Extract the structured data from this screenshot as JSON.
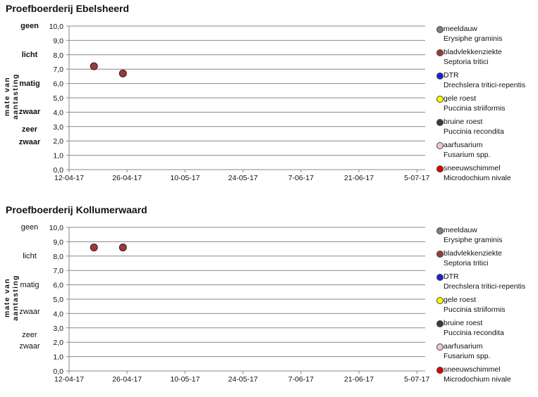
{
  "chart_data": [
    {
      "type": "scatter",
      "title": "Proefboerderij Ebelsheerd",
      "ylabel": "mate van aantasting",
      "ylim": [
        0,
        10
      ],
      "yticks": [
        "0,0",
        "1,0",
        "2,0",
        "3,0",
        "4,0",
        "5,0",
        "6,0",
        "7,0",
        "8,0",
        "9,0",
        "10,0"
      ],
      "xlim": [
        "12-04-17",
        "05-07-17"
      ],
      "xticks": [
        "12-04-17",
        "26-04-17",
        "10-05-17",
        "24-05-17",
        "7-06-17",
        "21-06-17",
        "5-07-17"
      ],
      "severity_labels": [
        {
          "label": "geen",
          "y": 10
        },
        {
          "label": "licht",
          "y": 8
        },
        {
          "label": "matig",
          "y": 6
        },
        {
          "label": "zwaar",
          "y": 4
        },
        {
          "label": "zeer",
          "y": 2.8
        },
        {
          "label": "zwaar",
          "y": 1.9
        }
      ],
      "grid": true,
      "legend_position": "right",
      "series": [
        {
          "name": "meeldauw",
          "latin": "Erysiphe graminis",
          "color": "#808080",
          "points": []
        },
        {
          "name": "bladvlekkenziekte",
          "latin": "Septoria tritici",
          "color": "#9b3b3b",
          "points": [
            {
              "x": "18-04-17",
              "y": 7.2
            },
            {
              "x": "25-04-17",
              "y": 6.7
            }
          ]
        },
        {
          "name": "DTR",
          "latin": "Drechslera tritici-repentis",
          "color": "#1f1fd6",
          "points": []
        },
        {
          "name": "gele roest",
          "latin": "Puccinia striiformis",
          "color": "#ffff00",
          "points": []
        },
        {
          "name": "bruine roest",
          "latin": "Puccinia recondita",
          "color": "#3d3d2d",
          "points": []
        },
        {
          "name": "aarfusarium",
          "latin": "Fusarium spp.",
          "color": "#f2c8c8",
          "points": []
        },
        {
          "name": "sneeuwschimmel",
          "latin": "Microdochium nivale",
          "color": "#e00000",
          "points": []
        }
      ]
    },
    {
      "type": "scatter",
      "title": "Proefboerderij Kollumerwaard",
      "ylabel": "mate van aantasting",
      "ylim": [
        0,
        10
      ],
      "yticks": [
        "0,0",
        "1,0",
        "2,0",
        "3,0",
        "4,0",
        "5,0",
        "6,0",
        "7,0",
        "8,0",
        "9,0",
        "10,0"
      ],
      "xlim": [
        "12-04-17",
        "05-07-17"
      ],
      "xticks": [
        "12-04-17",
        "26-04-17",
        "10-05-17",
        "24-05-17",
        "7-06-17",
        "21-06-17",
        "5-07-17"
      ],
      "severity_labels": [
        {
          "label": "geen",
          "y": 10
        },
        {
          "label": "licht",
          "y": 8
        },
        {
          "label": "matig",
          "y": 6
        },
        {
          "label": "zwaar",
          "y": 4.1
        },
        {
          "label": "zeer",
          "y": 2.5
        },
        {
          "label": "zwaar",
          "y": 1.7
        }
      ],
      "grid": true,
      "legend_position": "right",
      "series": [
        {
          "name": "meeldauw",
          "latin": "Erysiphe graminis",
          "color": "#808080",
          "points": []
        },
        {
          "name": "bladvlekkenziekte",
          "latin": "Septoria tritici",
          "color": "#9b3b3b",
          "points": [
            {
              "x": "18-04-17",
              "y": 8.6
            },
            {
              "x": "25-04-17",
              "y": 8.6
            }
          ]
        },
        {
          "name": "DTR",
          "latin": "Drechslera tritici-repentis",
          "color": "#1f1fd6",
          "points": []
        },
        {
          "name": "gele roest",
          "latin": "Puccinia striiformis",
          "color": "#ffff00",
          "points": []
        },
        {
          "name": "bruine roest",
          "latin": "Puccinia recondita",
          "color": "#3d3d2d",
          "points": []
        },
        {
          "name": "aarfusarium",
          "latin": "Fusarium spp.",
          "color": "#f2c8c8",
          "points": []
        },
        {
          "name": "sneeuwschimmel",
          "latin": "Microdochium nivale",
          "color": "#e00000",
          "points": []
        }
      ]
    }
  ]
}
